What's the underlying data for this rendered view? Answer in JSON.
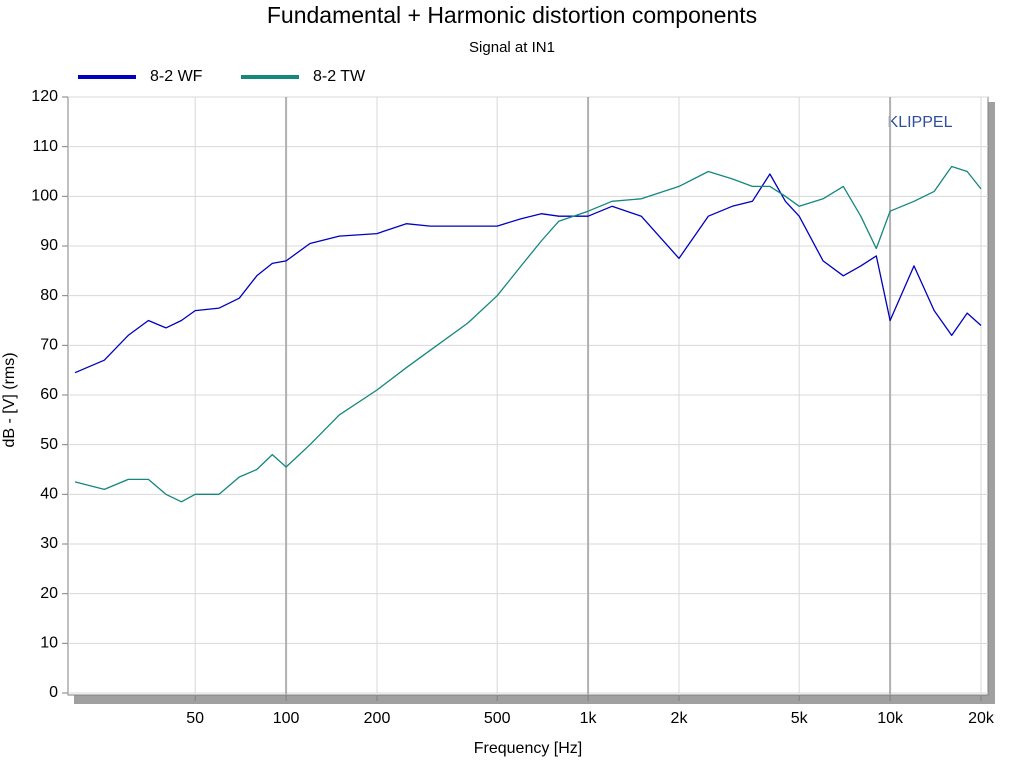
{
  "chart_data": {
    "type": "line",
    "title": "Fundamental + Harmonic distortion components",
    "subtitle": "Signal at IN1",
    "annotation": "KLIPPEL",
    "x_label": "Frequency [Hz]",
    "y_label": "dB - [V]  (rms)",
    "x_scale": "log",
    "grid": true,
    "legend_position": "top-left",
    "xlim": [
      20,
      20000
    ],
    "ylim": [
      0,
      120
    ],
    "xticks": [
      50,
      100,
      200,
      500,
      {
        "value": 1000,
        "label": "1k"
      },
      {
        "value": 2000,
        "label": "2k"
      },
      {
        "value": 5000,
        "label": "5k"
      },
      {
        "value": 10000,
        "label": "10k"
      },
      {
        "value": 20000,
        "label": "20k"
      }
    ],
    "yticks": [
      0,
      10,
      20,
      30,
      40,
      50,
      60,
      70,
      80,
      90,
      100,
      110,
      120
    ],
    "x": [
      20,
      25,
      30,
      35,
      40,
      45,
      50,
      60,
      70,
      80,
      90,
      100,
      120,
      150,
      200,
      250,
      300,
      400,
      500,
      600,
      700,
      800,
      1000,
      1200,
      1500,
      2000,
      2500,
      3000,
      3500,
      4000,
      4500,
      5000,
      6000,
      7000,
      8000,
      9000,
      10000,
      12000,
      14000,
      16000,
      18000,
      20000
    ],
    "series": [
      {
        "name": "8-2 WF",
        "color": "#0000c0",
        "values": [
          64.5,
          67,
          72,
          75,
          73.5,
          75,
          77,
          77.5,
          79.5,
          84,
          86.5,
          87,
          90.5,
          92,
          92.5,
          94.5,
          94,
          94,
          94,
          95.5,
          96.5,
          96,
          96,
          98,
          96,
          87.5,
          96,
          98,
          99,
          104.5,
          99,
          96,
          87,
          84,
          86,
          88,
          75,
          86,
          77,
          72,
          76.5,
          74
        ]
      },
      {
        "name": "8-2 TW",
        "color": "#14877f",
        "values": [
          42.5,
          41,
          43,
          43,
          40,
          38.5,
          40,
          40,
          43.5,
          45,
          48,
          45.5,
          50,
          56,
          61,
          65.5,
          69,
          74.5,
          80,
          86,
          91,
          95,
          97,
          99,
          99.5,
          102,
          105,
          103.5,
          102,
          102,
          100,
          98,
          99.5,
          102,
          96,
          89.5,
          97,
          99,
          101,
          106,
          105,
          101.5
        ]
      }
    ]
  }
}
